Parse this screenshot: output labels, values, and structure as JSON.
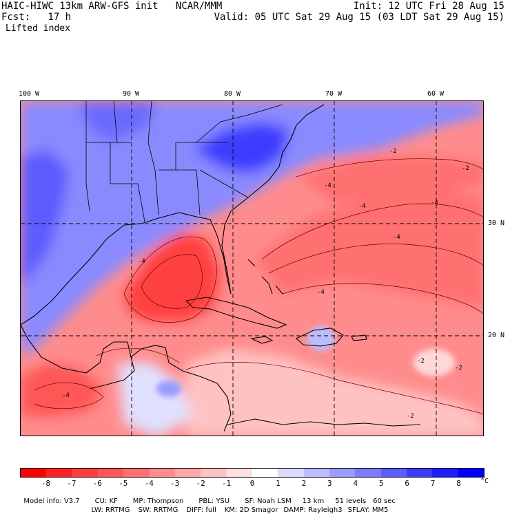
{
  "header": {
    "model_line": "HAIC-HIWC 13km ARW-GFS init   NCAR/MMM",
    "fcst_line": "Fcst:   17 h",
    "field_name": "Lifted index",
    "init_line": "Init: 12 UTC Fri 28 Aug 15",
    "valid_line": "Valid: 05 UTC Sat 29 Aug 15 (03 LDT Sat 29 Aug 15)"
  },
  "map": {
    "lon_labels": [
      "100 W",
      "90 W",
      "80 W",
      "70 W",
      "60 W"
    ],
    "lat_labels": [
      "30 N",
      "20 N"
    ],
    "contour_labels": [
      "-4",
      "-4",
      "-4",
      "-4",
      "-2",
      "-2",
      "-2",
      "-4",
      "-4",
      "-2",
      "-2",
      "-4"
    ]
  },
  "colorbar": {
    "colors": [
      "#ff0000",
      "#ff2222",
      "#ff3f3f",
      "#ff5757",
      "#ff7070",
      "#ff8c8c",
      "#ffa6a6",
      "#ffc2c2",
      "#ffe0e0",
      "#ffffff",
      "#dcdcff",
      "#bcbcff",
      "#9c9cff",
      "#7c7cff",
      "#5c5cff",
      "#3c3cff",
      "#1e1eff",
      "#0000ff"
    ],
    "tick_labels": [
      "-8",
      "-7",
      "-6",
      "-5",
      "-4",
      "-3",
      "-2",
      "-1",
      "0",
      "1",
      "2",
      "3",
      "4",
      "5",
      "6",
      "7",
      "8"
    ],
    "unit": "°C"
  },
  "footer": {
    "line1": [
      "Model info: V3.7",
      "CU: KF",
      "MP: Thompson",
      "PBL: YSU",
      "SF: Noah LSM",
      "13 km",
      "51 levels",
      "60 sec"
    ],
    "line2": [
      "LW: RRTMG",
      "SW: RRTMG",
      "DIFF: full",
      "KM: 2D Smagor",
      "DAMP: Rayleigh3",
      "SFLAY: MM5"
    ]
  }
}
